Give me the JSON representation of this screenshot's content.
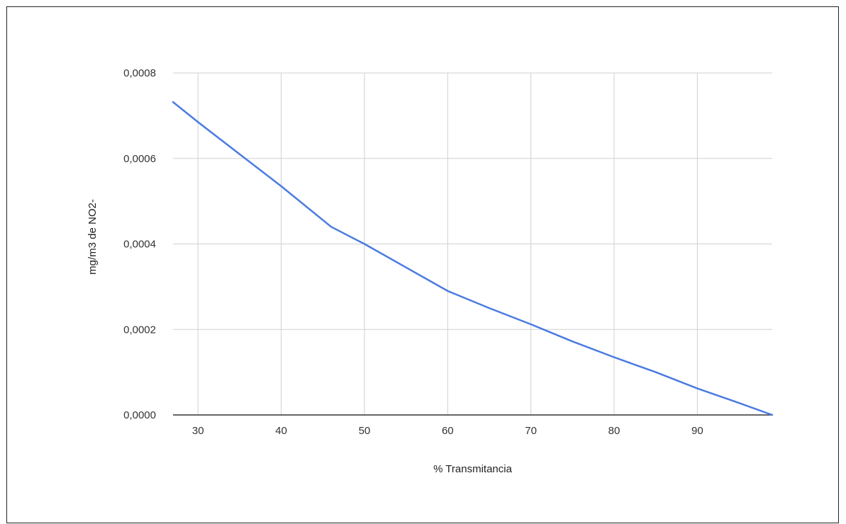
{
  "chart_data": {
    "type": "line",
    "title": "",
    "xlabel": "% Transmitancia",
    "ylabel": "mg/m3 de NO2-",
    "xlim": [
      27,
      99
    ],
    "ylim": [
      0,
      0.0008
    ],
    "x_ticks": [
      30,
      40,
      50,
      60,
      70,
      80,
      90
    ],
    "x_tick_labels": [
      "30",
      "40",
      "50",
      "60",
      "70",
      "80",
      "90"
    ],
    "y_ticks": [
      0,
      0.0002,
      0.0004,
      0.0006,
      0.0008
    ],
    "y_tick_labels": [
      "0,0000",
      "0,0002",
      "0,0004",
      "0,0006",
      "0,0008"
    ],
    "grid": true,
    "legend": "none",
    "series": [
      {
        "color": "#4a7be0",
        "x": [
          27,
          30,
          35,
          40,
          46,
          50,
          55,
          60,
          65,
          70,
          75,
          80,
          85,
          90,
          95,
          99
        ],
        "y": [
          0.000732,
          0.000685,
          0.00061,
          0.000535,
          0.00044,
          0.0004,
          0.000345,
          0.00029,
          0.00025,
          0.000212,
          0.000172,
          0.000135,
          0.0001,
          6.2e-05,
          2.8e-05,
          0.0
        ]
      }
    ],
    "colors": {
      "line": "#4a7be0",
      "grid": "#d0d0d0",
      "baseline": "#333333"
    }
  }
}
